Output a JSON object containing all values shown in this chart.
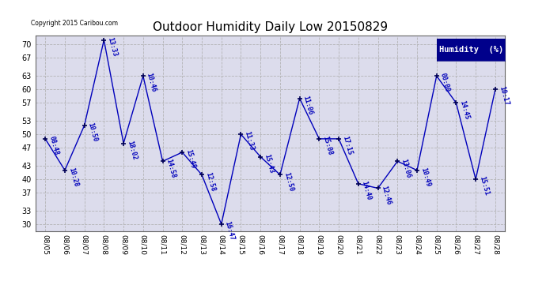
{
  "title": "Outdoor Humidity Daily Low 20150829",
  "copyright_text": "Copyright 2015 Caribou.com",
  "legend_label": "Humidity  (%)",
  "bg_color": "#ffffff",
  "plot_bg_color": "#dcdcec",
  "line_color": "#0000bb",
  "marker_color": "#000055",
  "grid_color": "#b0b0b0",
  "ylim": [
    28.5,
    72
  ],
  "yticks": [
    30,
    33,
    37,
    40,
    43,
    47,
    50,
    53,
    57,
    60,
    63,
    67,
    70
  ],
  "dates": [
    "08/05",
    "08/06",
    "08/07",
    "08/08",
    "08/09",
    "08/10",
    "08/11",
    "08/12",
    "08/13",
    "08/14",
    "08/15",
    "08/16",
    "08/17",
    "08/18",
    "08/19",
    "08/20",
    "08/21",
    "08/22",
    "08/23",
    "08/24",
    "08/25",
    "08/26",
    "08/27",
    "08/28"
  ],
  "values": [
    49,
    42,
    52,
    71,
    48,
    63,
    44,
    46,
    41,
    30,
    50,
    45,
    41,
    58,
    49,
    49,
    39,
    38,
    44,
    42,
    63,
    57,
    40,
    60
  ],
  "labels": [
    "08:48",
    "10:28",
    "10:50",
    "13:33",
    "18:02",
    "10:46",
    "14:58",
    "15:49",
    "12:58",
    "16:47",
    "11:33",
    "15:43",
    "12:50",
    "11:06",
    "15:08",
    "17:15",
    "14:40",
    "12:46",
    "13:06",
    "10:49",
    "00:00",
    "14:45",
    "15:51",
    "10:17"
  ],
  "title_fontsize": 11,
  "label_fontsize": 6.0,
  "tick_fontsize": 7,
  "legend_fontsize": 7.5
}
